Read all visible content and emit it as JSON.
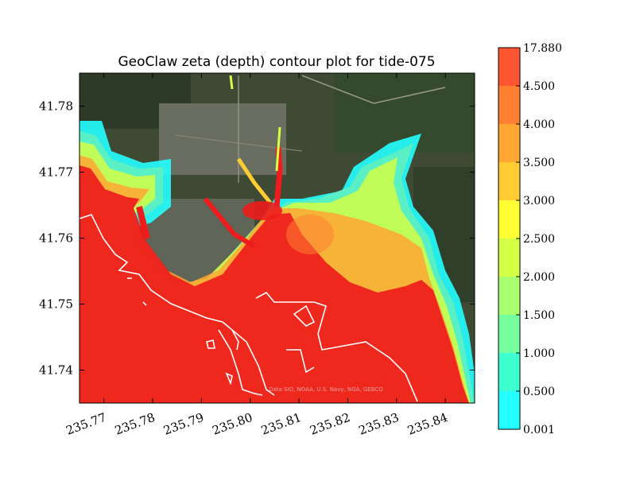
{
  "chart_data": {
    "type": "heatmap",
    "title": "GeoClaw zeta (depth) contour plot for tide-075",
    "xlabel": "",
    "ylabel": "",
    "xlim": [
      235.765,
      235.846
    ],
    "ylim": [
      41.735,
      41.785
    ],
    "x_ticks": [
      "235.77",
      "235.78",
      "235.79",
      "235.80",
      "235.81",
      "235.82",
      "235.83",
      "235.84"
    ],
    "y_ticks": [
      "41.74",
      "41.75",
      "41.76",
      "41.77",
      "41.78"
    ],
    "x_tick_values": [
      235.77,
      235.78,
      235.79,
      235.8,
      235.81,
      235.82,
      235.83,
      235.84
    ],
    "y_tick_values": [
      41.74,
      41.75,
      41.76,
      41.77,
      41.78
    ],
    "colorbar": {
      "levels": [
        "0.001",
        "0.500",
        "1.000",
        "1.500",
        "2.000",
        "2.500",
        "3.000",
        "3.500",
        "4.000",
        "4.500",
        "17.880"
      ],
      "colors": [
        "#24ffff",
        "#3dffd0",
        "#75ffa0",
        "#a8ff70",
        "#d4ff45",
        "#ffff33",
        "#ffcc33",
        "#ffa633",
        "#ff8033",
        "#ff5533"
      ]
    },
    "background_credit": "Data SIO, NOAA, U.S. Navy, NGA, GEBCO",
    "grid": false,
    "legend": "colorbar-right"
  }
}
